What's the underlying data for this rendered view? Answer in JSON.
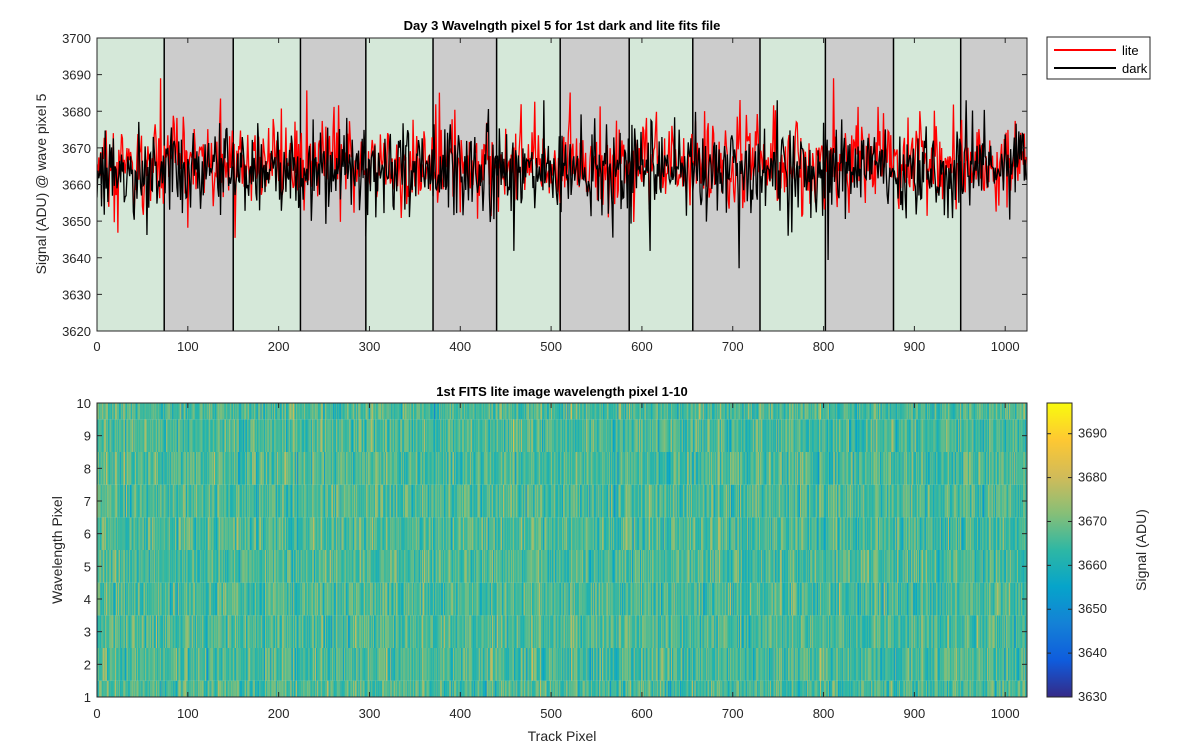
{
  "chart_data": [
    {
      "type": "line",
      "title": "Day 3 Wavelngth pixel 5 for 1st dark and lite fits file",
      "xlabel": "",
      "ylabel": "Signal (ADU) @ wave pixel 5",
      "xlim": [
        0,
        1024
      ],
      "ylim": [
        3620,
        3700
      ],
      "xticks": [
        0,
        100,
        200,
        300,
        400,
        500,
        600,
        700,
        800,
        900,
        1000
      ],
      "yticks": [
        3620,
        3630,
        3640,
        3650,
        3660,
        3670,
        3680,
        3690,
        3700
      ],
      "series": [
        {
          "name": "lite",
          "color": "#ff0000",
          "baseline": 3666,
          "noise_range": [
            3642,
            3689
          ],
          "n_points": 1024
        },
        {
          "name": "dark",
          "color": "#000000",
          "baseline": 3664,
          "noise_range": [
            3636,
            3683
          ],
          "n_points": 1024
        }
      ],
      "legend": {
        "placement": "top-right-outside",
        "entries": [
          "lite",
          "dark"
        ]
      },
      "background_bands": {
        "boundaries": [
          0,
          74,
          150,
          224,
          296,
          370,
          440,
          510,
          586,
          656,
          730,
          802,
          877,
          951,
          1024
        ],
        "colors": [
          "#d5e8d9",
          "#cccccc"
        ]
      }
    },
    {
      "type": "heatmap",
      "title": "1st FITS lite image wavelength pixel 1-10",
      "xlabel": "Track Pixel",
      "ylabel": "Wavelength Pixel",
      "xlim": [
        0,
        1024
      ],
      "ylim": [
        1,
        10
      ],
      "xticks": [
        0,
        100,
        200,
        300,
        400,
        500,
        600,
        700,
        800,
        900,
        1000
      ],
      "yticks": [
        1,
        2,
        3,
        4,
        5,
        6,
        7,
        8,
        9,
        10
      ],
      "rows": 10,
      "cols": 1024,
      "value_range": [
        3630,
        3697
      ],
      "colormap": "parula",
      "colorbar": {
        "label": "Signal (ADU)",
        "ticks": [
          3630,
          3640,
          3650,
          3660,
          3670,
          3680,
          3690
        ]
      }
    }
  ]
}
